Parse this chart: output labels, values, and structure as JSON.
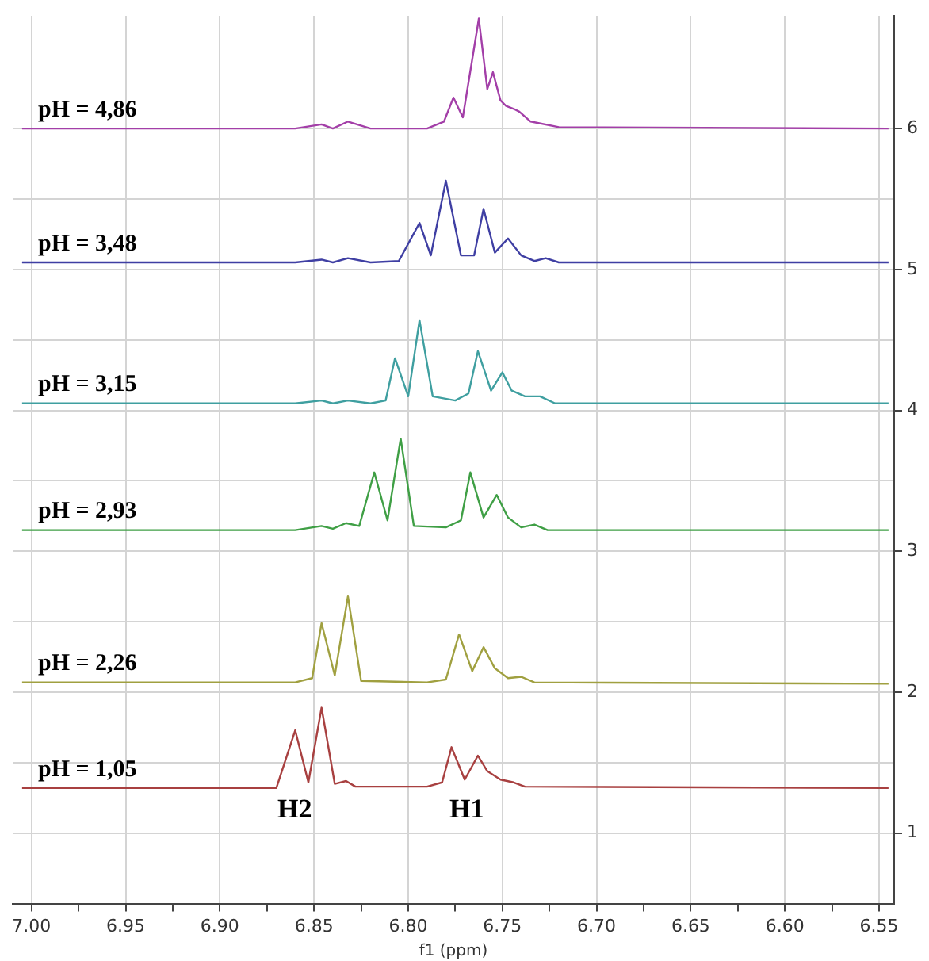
{
  "chart_data": {
    "type": "line",
    "xlabel": "f1 (ppm)",
    "xlim": [
      7.01,
      6.542
    ],
    "xticks": [
      {
        "value": 7.0,
        "label": "7.00"
      },
      {
        "value": 6.975,
        "label": null
      },
      {
        "value": 6.95,
        "label": "6.95"
      },
      {
        "value": 6.925,
        "label": null
      },
      {
        "value": 6.9,
        "label": "6.90"
      },
      {
        "value": 6.875,
        "label": null
      },
      {
        "value": 6.85,
        "label": "6.85"
      },
      {
        "value": 6.825,
        "label": null
      },
      {
        "value": 6.8,
        "label": "6.80"
      },
      {
        "value": 6.775,
        "label": null
      },
      {
        "value": 6.75,
        "label": "6.75"
      },
      {
        "value": 6.725,
        "label": null
      },
      {
        "value": 6.7,
        "label": "6.70"
      },
      {
        "value": 6.675,
        "label": null
      },
      {
        "value": 6.65,
        "label": "6.65"
      },
      {
        "value": 6.625,
        "label": null
      },
      {
        "value": 6.6,
        "label": "6.60"
      },
      {
        "value": 6.575,
        "label": null
      },
      {
        "value": 6.55,
        "label": "6.55"
      }
    ],
    "ylim": [
      0.5,
      6.8
    ],
    "yticks": [
      1,
      {
        "value": 1.5,
        "label": null
      },
      2,
      {
        "value": 2.5,
        "label": null
      },
      3,
      {
        "value": 3.5,
        "label": null
      },
      4,
      {
        "value": 4.5,
        "label": null
      },
      5,
      {
        "value": 5.5,
        "label": null
      },
      6
    ],
    "grid": true,
    "legend": false,
    "marker": "none",
    "line_style": "solid",
    "series": [
      {
        "name": "pH = 4,86",
        "color": "#a33fa8",
        "x": [
          7.005,
          6.86,
          6.846,
          6.84,
          6.832,
          6.82,
          6.79,
          6.781,
          6.776,
          6.771,
          6.7625,
          6.758,
          6.755,
          6.751,
          6.748,
          6.744,
          6.741,
          6.735,
          6.72,
          6.545
        ],
        "values": [
          6.0,
          6.0,
          6.03,
          6.0,
          6.05,
          6.0,
          6.0,
          6.05,
          6.22,
          6.08,
          6.78,
          6.28,
          6.4,
          6.2,
          6.16,
          6.14,
          6.12,
          6.05,
          6.01,
          6.0
        ]
      },
      {
        "name": "pH = 3,48",
        "color": "#3f3fa3",
        "x": [
          7.005,
          6.86,
          6.846,
          6.84,
          6.832,
          6.82,
          6.805,
          6.794,
          6.788,
          6.78,
          6.772,
          6.765,
          6.76,
          6.754,
          6.747,
          6.74,
          6.733,
          6.727,
          6.72,
          6.545
        ],
        "values": [
          5.05,
          5.05,
          5.07,
          5.05,
          5.08,
          5.05,
          5.06,
          5.33,
          5.1,
          5.63,
          5.1,
          5.1,
          5.43,
          5.12,
          5.22,
          5.1,
          5.06,
          5.08,
          5.05,
          5.05
        ]
      },
      {
        "name": "pH = 3,15",
        "color": "#3f9fa0",
        "x": [
          7.005,
          6.86,
          6.846,
          6.84,
          6.832,
          6.82,
          6.812,
          6.807,
          6.8,
          6.794,
          6.787,
          6.775,
          6.768,
          6.763,
          6.756,
          6.75,
          6.745,
          6.738,
          6.73,
          6.722,
          6.545
        ],
        "values": [
          4.05,
          4.05,
          4.07,
          4.05,
          4.07,
          4.05,
          4.07,
          4.37,
          4.1,
          4.64,
          4.1,
          4.07,
          4.12,
          4.42,
          4.14,
          4.27,
          4.14,
          4.1,
          4.1,
          4.05,
          4.05
        ]
      },
      {
        "name": "pH = 2,93",
        "color": "#3f9f45",
        "x": [
          7.005,
          6.86,
          6.846,
          6.84,
          6.833,
          6.826,
          6.818,
          6.811,
          6.804,
          6.797,
          6.78,
          6.772,
          6.767,
          6.76,
          6.753,
          6.747,
          6.74,
          6.733,
          6.726,
          6.545
        ],
        "values": [
          3.15,
          3.15,
          3.18,
          3.16,
          3.2,
          3.18,
          3.56,
          3.22,
          3.8,
          3.18,
          3.17,
          3.22,
          3.56,
          3.24,
          3.4,
          3.24,
          3.17,
          3.19,
          3.15,
          3.15
        ]
      },
      {
        "name": "pH = 2,26",
        "color": "#a0a040",
        "x": [
          7.005,
          6.86,
          6.851,
          6.846,
          6.839,
          6.832,
          6.825,
          6.79,
          6.78,
          6.773,
          6.766,
          6.76,
          6.754,
          6.747,
          6.74,
          6.733,
          6.545
        ],
        "values": [
          2.07,
          2.07,
          2.1,
          2.49,
          2.12,
          2.68,
          2.08,
          2.07,
          2.09,
          2.41,
          2.15,
          2.32,
          2.17,
          2.1,
          2.11,
          2.07,
          2.06
        ]
      },
      {
        "name": "pH = 1,05",
        "color": "#a84040",
        "x": [
          7.005,
          6.87,
          6.86,
          6.853,
          6.846,
          6.839,
          6.833,
          6.828,
          6.79,
          6.782,
          6.777,
          6.77,
          6.763,
          6.758,
          6.751,
          6.744,
          6.738,
          6.545
        ],
        "values": [
          1.32,
          1.32,
          1.73,
          1.36,
          1.89,
          1.35,
          1.37,
          1.33,
          1.33,
          1.36,
          1.61,
          1.38,
          1.55,
          1.44,
          1.38,
          1.36,
          1.33,
          1.32
        ]
      }
    ],
    "annotations": [
      "H2",
      "H1"
    ]
  }
}
